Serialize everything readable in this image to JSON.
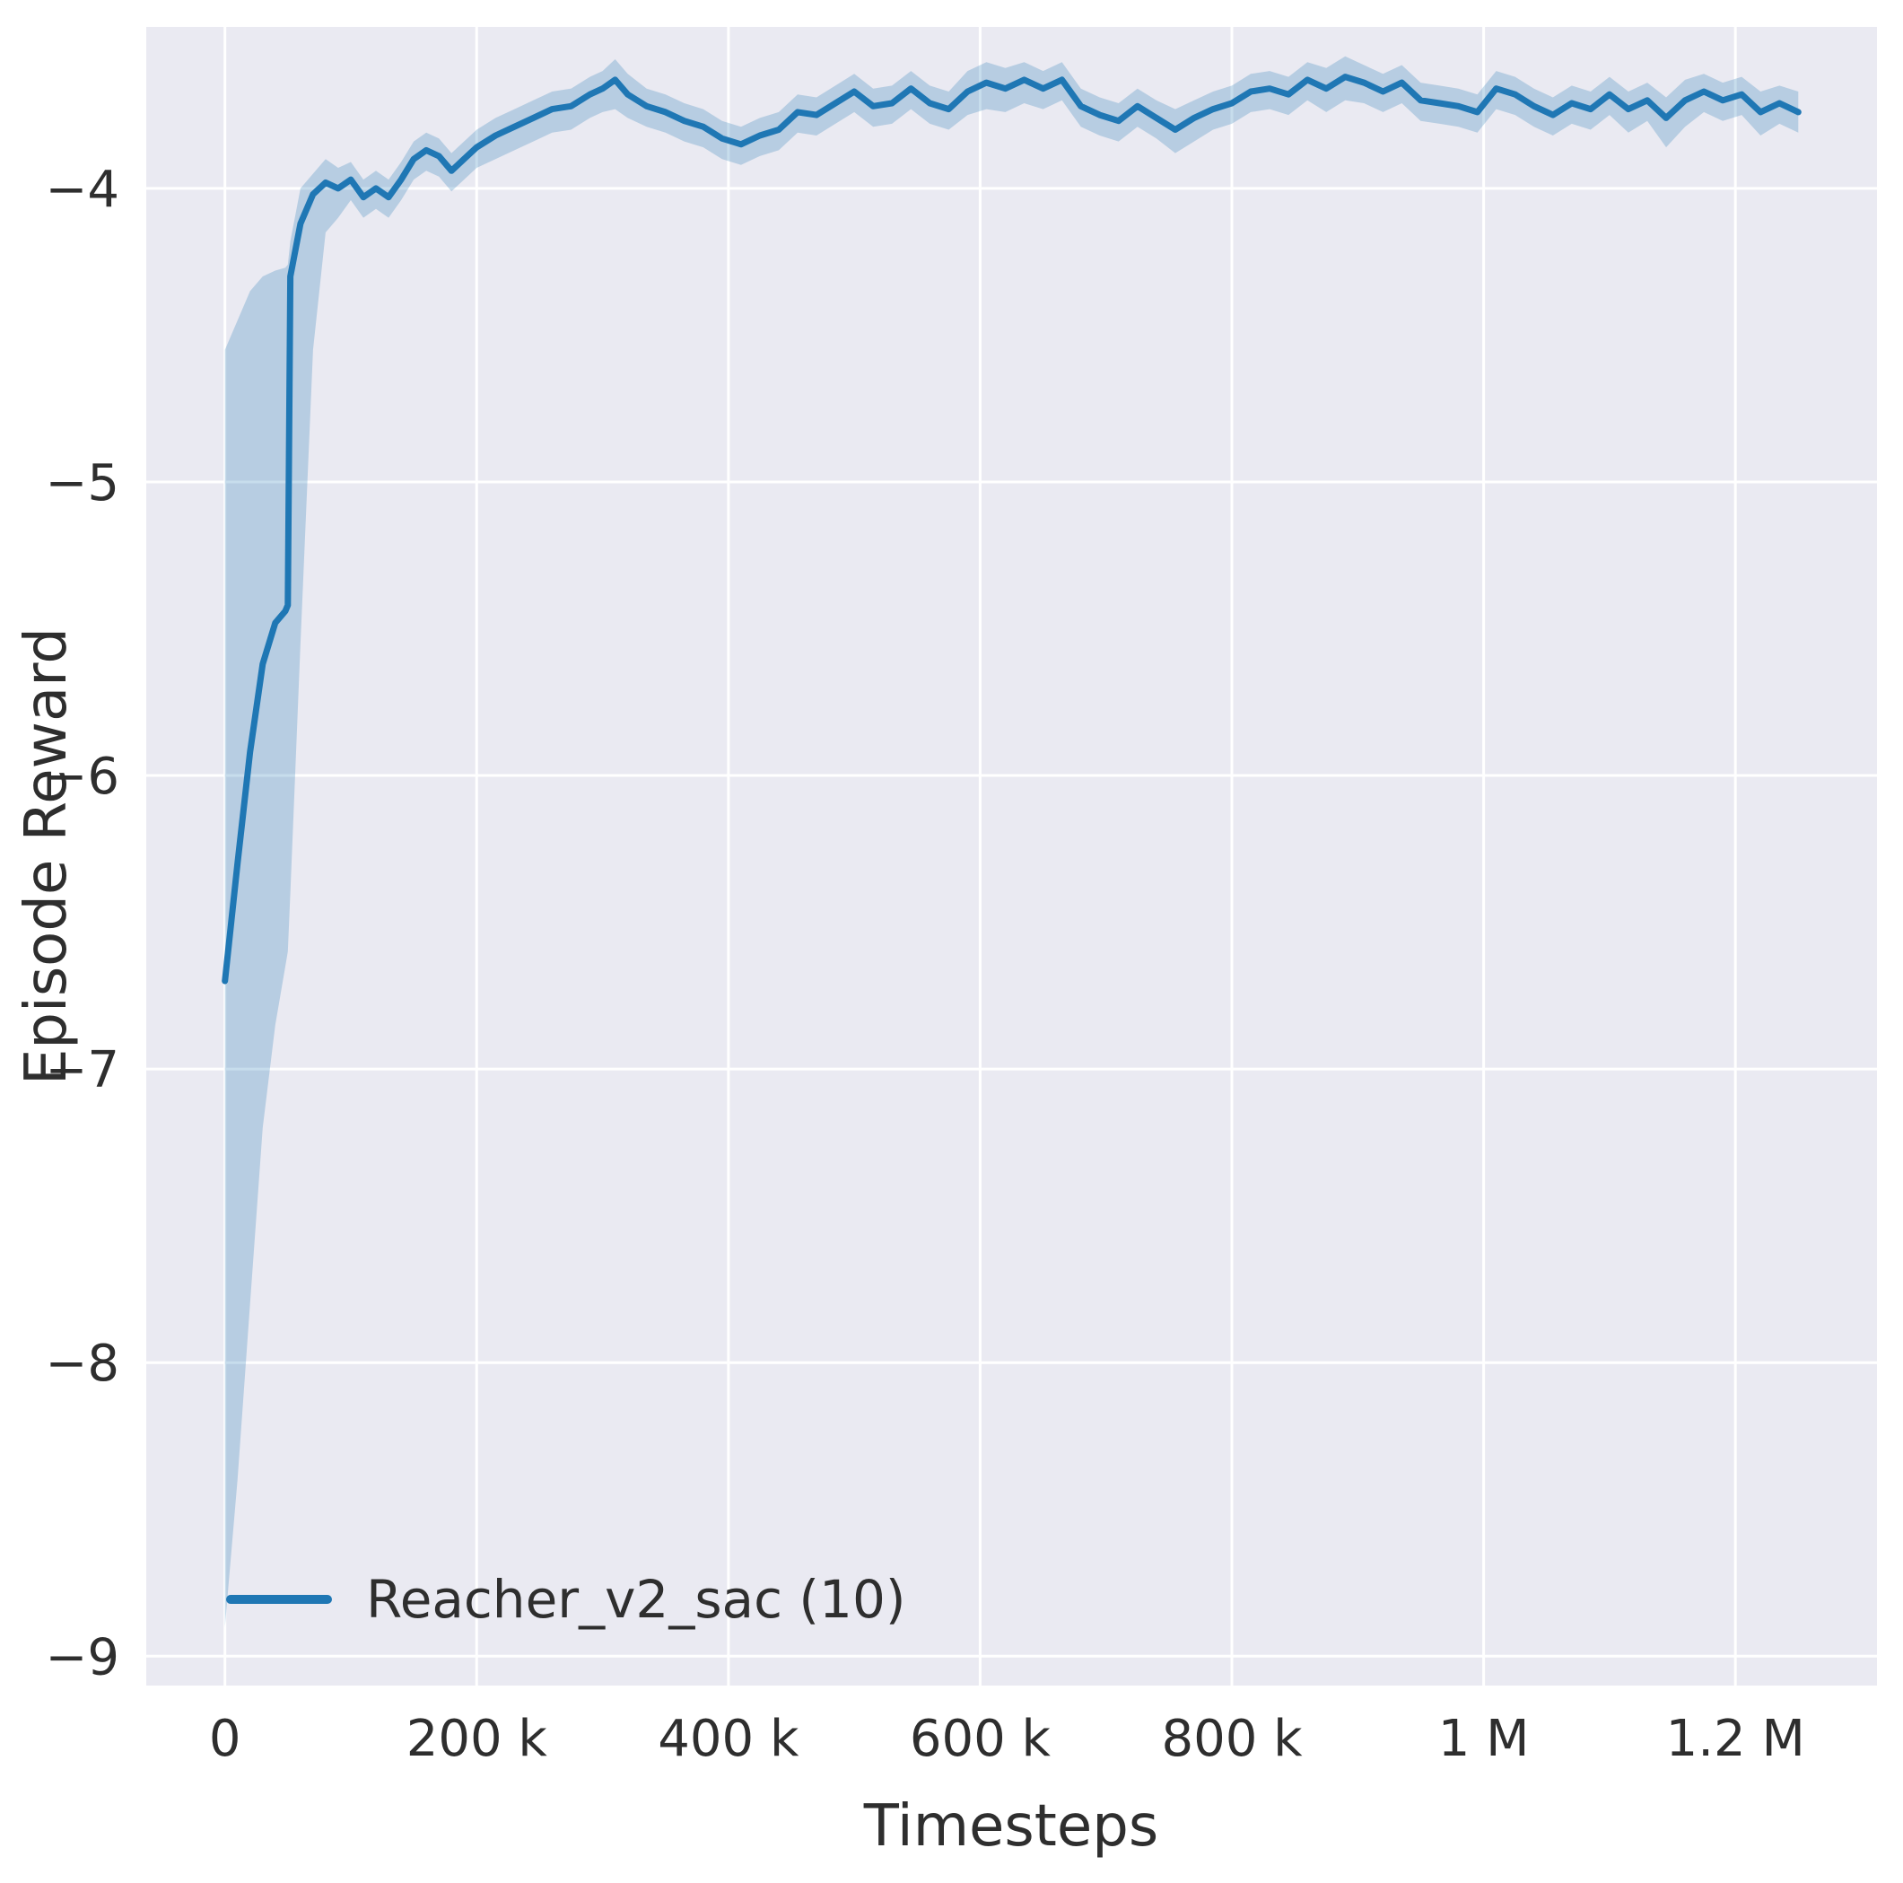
{
  "figure": {
    "background": "#ffffff",
    "plot_background": "#eaeaf2",
    "grid_color": "#ffffff",
    "line_color": "#1f77b4",
    "band_color": "rgba(31,119,180,0.25)",
    "text_color": "#2e2e2e"
  },
  "chart_data": {
    "type": "line",
    "title": "",
    "xlabel": "Timesteps",
    "ylabel": "Episode Reward",
    "grid": true,
    "legend_position": "lower left",
    "xlim": [
      -62500,
      1312500
    ],
    "ylim": [
      -9.1,
      -3.45
    ],
    "x_ticks": [
      {
        "value": 0,
        "label": "0"
      },
      {
        "value": 200000,
        "label": "200 k"
      },
      {
        "value": 400000,
        "label": "400 k"
      },
      {
        "value": 600000,
        "label": "600 k"
      },
      {
        "value": 800000,
        "label": "800 k"
      },
      {
        "value": 1000000,
        "label": "1 M"
      },
      {
        "value": 1200000,
        "label": "1.2 M"
      }
    ],
    "y_ticks": [
      {
        "value": -4,
        "label": "−4"
      },
      {
        "value": -5,
        "label": "−5"
      },
      {
        "value": -6,
        "label": "−6"
      },
      {
        "value": -7,
        "label": "−7"
      },
      {
        "value": -8,
        "label": "−8"
      },
      {
        "value": -9,
        "label": "−9"
      }
    ],
    "series": [
      {
        "name": "Reacher_v2_sac (10)",
        "color": "#1f77b4",
        "x": [
          0,
          10000,
          20000,
          30000,
          40000,
          48000,
          50000,
          52000,
          60000,
          70000,
          80000,
          90000,
          100000,
          110000,
          120000,
          130000,
          140000,
          150000,
          160000,
          170000,
          180000,
          190000,
          200000,
          215000,
          230000,
          245000,
          260000,
          275000,
          290000,
          300000,
          310000,
          320000,
          335000,
          350000,
          365000,
          380000,
          395000,
          410000,
          425000,
          440000,
          455000,
          470000,
          485000,
          500000,
          515000,
          530000,
          545000,
          560000,
          575000,
          590000,
          605000,
          620000,
          635000,
          650000,
          665000,
          680000,
          695000,
          710000,
          725000,
          740000,
          755000,
          770000,
          785000,
          800000,
          815000,
          830000,
          845000,
          860000,
          875000,
          890000,
          905000,
          920000,
          935000,
          950000,
          965000,
          980000,
          995000,
          1010000,
          1025000,
          1040000,
          1055000,
          1070000,
          1085000,
          1100000,
          1115000,
          1130000,
          1145000,
          1160000,
          1175000,
          1190000,
          1205000,
          1220000,
          1235000,
          1250000
        ],
        "mean": [
          -6.7,
          -6.3,
          -5.92,
          -5.62,
          -5.48,
          -5.44,
          -5.42,
          -4.3,
          -4.12,
          -4.02,
          -3.98,
          -4.0,
          -3.97,
          -4.03,
          -4.0,
          -4.03,
          -3.97,
          -3.9,
          -3.87,
          -3.89,
          -3.94,
          -3.9,
          -3.86,
          -3.82,
          -3.79,
          -3.76,
          -3.73,
          -3.72,
          -3.68,
          -3.66,
          -3.63,
          -3.68,
          -3.72,
          -3.74,
          -3.77,
          -3.79,
          -3.83,
          -3.85,
          -3.82,
          -3.8,
          -3.74,
          -3.75,
          -3.71,
          -3.67,
          -3.72,
          -3.71,
          -3.66,
          -3.71,
          -3.73,
          -3.67,
          -3.64,
          -3.66,
          -3.63,
          -3.66,
          -3.63,
          -3.72,
          -3.75,
          -3.77,
          -3.72,
          -3.76,
          -3.8,
          -3.76,
          -3.73,
          -3.71,
          -3.67,
          -3.66,
          -3.68,
          -3.63,
          -3.66,
          -3.62,
          -3.64,
          -3.67,
          -3.64,
          -3.7,
          -3.71,
          -3.72,
          -3.74,
          -3.66,
          -3.68,
          -3.72,
          -3.75,
          -3.71,
          -3.73,
          -3.68,
          -3.73,
          -3.7,
          -3.76,
          -3.7,
          -3.67,
          -3.7,
          -3.68,
          -3.74,
          -3.71,
          -3.74
        ],
        "lower": [
          -8.9,
          -8.4,
          -7.8,
          -7.2,
          -6.85,
          -6.65,
          -6.6,
          -6.4,
          -5.55,
          -4.55,
          -4.15,
          -4.1,
          -4.04,
          -4.1,
          -4.07,
          -4.1,
          -4.04,
          -3.97,
          -3.94,
          -3.96,
          -4.01,
          -3.97,
          -3.93,
          -3.9,
          -3.87,
          -3.84,
          -3.81,
          -3.8,
          -3.76,
          -3.74,
          -3.73,
          -3.76,
          -3.79,
          -3.81,
          -3.84,
          -3.86,
          -3.9,
          -3.92,
          -3.89,
          -3.87,
          -3.81,
          -3.82,
          -3.78,
          -3.74,
          -3.79,
          -3.78,
          -3.73,
          -3.78,
          -3.8,
          -3.75,
          -3.73,
          -3.74,
          -3.71,
          -3.73,
          -3.7,
          -3.79,
          -3.82,
          -3.84,
          -3.79,
          -3.83,
          -3.88,
          -3.84,
          -3.8,
          -3.78,
          -3.74,
          -3.73,
          -3.75,
          -3.7,
          -3.74,
          -3.7,
          -3.71,
          -3.74,
          -3.71,
          -3.77,
          -3.78,
          -3.79,
          -3.81,
          -3.73,
          -3.75,
          -3.79,
          -3.82,
          -3.78,
          -3.8,
          -3.75,
          -3.81,
          -3.77,
          -3.86,
          -3.79,
          -3.74,
          -3.77,
          -3.75,
          -3.82,
          -3.78,
          -3.81
        ],
        "upper": [
          -4.55,
          -4.45,
          -4.35,
          -4.3,
          -4.28,
          -4.27,
          -4.26,
          -4.18,
          -4.0,
          -3.95,
          -3.9,
          -3.93,
          -3.91,
          -3.97,
          -3.94,
          -3.97,
          -3.91,
          -3.84,
          -3.81,
          -3.83,
          -3.88,
          -3.84,
          -3.8,
          -3.76,
          -3.73,
          -3.7,
          -3.67,
          -3.66,
          -3.62,
          -3.6,
          -3.56,
          -3.61,
          -3.66,
          -3.68,
          -3.71,
          -3.73,
          -3.77,
          -3.79,
          -3.76,
          -3.74,
          -3.68,
          -3.69,
          -3.65,
          -3.61,
          -3.66,
          -3.65,
          -3.6,
          -3.65,
          -3.67,
          -3.6,
          -3.57,
          -3.59,
          -3.57,
          -3.6,
          -3.57,
          -3.66,
          -3.69,
          -3.71,
          -3.66,
          -3.7,
          -3.73,
          -3.7,
          -3.67,
          -3.65,
          -3.61,
          -3.6,
          -3.62,
          -3.57,
          -3.59,
          -3.55,
          -3.58,
          -3.61,
          -3.58,
          -3.64,
          -3.65,
          -3.66,
          -3.68,
          -3.6,
          -3.62,
          -3.66,
          -3.69,
          -3.65,
          -3.67,
          -3.62,
          -3.67,
          -3.64,
          -3.69,
          -3.63,
          -3.61,
          -3.64,
          -3.62,
          -3.67,
          -3.65,
          -3.67
        ]
      }
    ]
  }
}
